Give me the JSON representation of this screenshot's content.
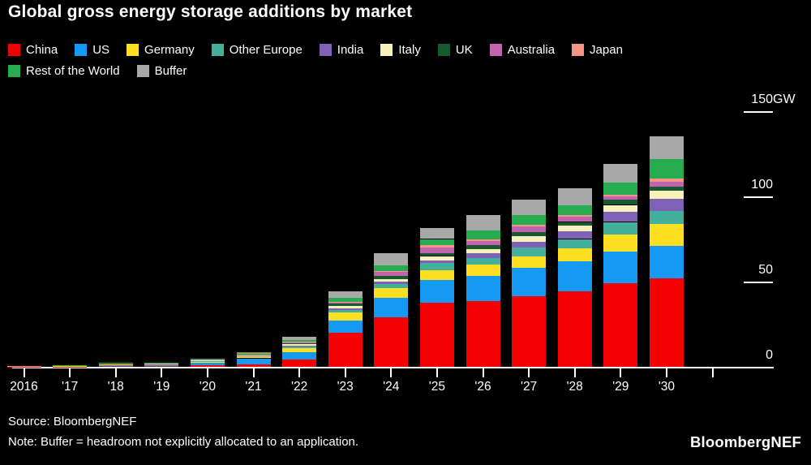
{
  "title": "Global gross energy storage additions by market",
  "legend": [
    {
      "label": "China",
      "color": "#f40000"
    },
    {
      "label": "US",
      "color": "#149af2"
    },
    {
      "label": "Germany",
      "color": "#ffdf22"
    },
    {
      "label": "Other Europe",
      "color": "#43b09c"
    },
    {
      "label": "India",
      "color": "#7d62b8"
    },
    {
      "label": "Italy",
      "color": "#f7f2ba"
    },
    {
      "label": "UK",
      "color": "#19592f"
    },
    {
      "label": "Australia",
      "color": "#c263af"
    },
    {
      "label": "Japan",
      "color": "#f79488"
    },
    {
      "label": "Rest of the World",
      "color": "#27ad4f"
    },
    {
      "label": "Buffer",
      "color": "#a8a8a8"
    }
  ],
  "y_axis": {
    "unit": "GW",
    "ticks": [
      {
        "value": 150,
        "label": "150",
        "suffix": "GW",
        "dash": true
      },
      {
        "value": 100,
        "label": "100",
        "suffix": "",
        "dash": true
      },
      {
        "value": 50,
        "label": "50",
        "suffix": "",
        "dash": true
      },
      {
        "value": 0,
        "label": "0",
        "suffix": "",
        "dash": false
      }
    ]
  },
  "x_axis": {
    "labels": [
      "2016",
      "'17",
      "'18",
      "'19",
      "'20",
      "'21",
      "'22",
      "'23",
      "'24",
      "'25",
      "'26",
      "'27",
      "'28",
      "'29",
      "'30"
    ],
    "extra_unlabeled_tick": true
  },
  "chart_data": {
    "type": "bar",
    "stacked": true,
    "title": "Global gross energy storage additions by market",
    "unit": "GW",
    "ylim": [
      0,
      150
    ],
    "grid": false,
    "legend_position": "top",
    "categories": [
      "2016",
      "2017",
      "2018",
      "2019",
      "2020",
      "2021",
      "2022",
      "2023",
      "2024",
      "2025",
      "2026",
      "2027",
      "2028",
      "2029",
      "2030"
    ],
    "series": [
      {
        "name": "China",
        "color": "#f40000",
        "values": [
          0.1,
          0.2,
          0.5,
          0.4,
          1.0,
          1.5,
          4.5,
          20.0,
          29.0,
          37.5,
          38.5,
          41.5,
          44.5,
          49.0,
          52.0
        ]
      },
      {
        "name": "US",
        "color": "#149af2",
        "values": [
          0.2,
          0.3,
          0.6,
          0.5,
          1.2,
          3.5,
          4.0,
          7.0,
          11.5,
          13.5,
          15.0,
          16.5,
          17.5,
          18.5,
          19.0
        ]
      },
      {
        "name": "Germany",
        "color": "#ffdf22",
        "values": [
          0.1,
          0.2,
          0.4,
          0.4,
          0.7,
          1.0,
          2.4,
          5.0,
          5.5,
          5.5,
          6.5,
          7.0,
          7.5,
          10.0,
          13.0
        ]
      },
      {
        "name": "Other Europe",
        "color": "#43b09c",
        "values": [
          0.05,
          0.1,
          0.2,
          0.2,
          0.5,
          0.5,
          1.2,
          1.5,
          2.5,
          4.5,
          4.0,
          5.0,
          5.5,
          7.5,
          7.5
        ]
      },
      {
        "name": "India",
        "color": "#7d62b8",
        "values": [
          0,
          0,
          0,
          0,
          0.2,
          0.2,
          0.3,
          0.8,
          1.5,
          1.5,
          2.5,
          3.5,
          4.5,
          6.0,
          7.0
        ]
      },
      {
        "name": "Italy",
        "color": "#f7f2ba",
        "values": [
          0,
          0,
          0,
          0,
          0.1,
          0.5,
          0.8,
          1.5,
          1.5,
          2.5,
          2.5,
          3.0,
          3.5,
          4.0,
          4.8
        ]
      },
      {
        "name": "UK",
        "color": "#19592f",
        "values": [
          0.05,
          0.1,
          0.3,
          0.3,
          0.4,
          0.4,
          0.6,
          1.2,
          2.0,
          1.5,
          2.5,
          2.5,
          2.0,
          3.0,
          2.4
        ]
      },
      {
        "name": "Australia",
        "color": "#c263af",
        "values": [
          0,
          0,
          0.2,
          0.2,
          0.3,
          0.3,
          0.5,
          0.8,
          2.0,
          3.5,
          2.5,
          3.5,
          3.0,
          2.0,
          3.0
        ]
      },
      {
        "name": "Japan",
        "color": "#f79488",
        "values": [
          0.05,
          0.05,
          0.1,
          0.1,
          0.2,
          0.2,
          0.3,
          0.5,
          0.5,
          1.5,
          1.0,
          1.0,
          1.0,
          1.0,
          2.0
        ]
      },
      {
        "name": "Rest of the World",
        "color": "#27ad4f",
        "values": [
          0,
          0.05,
          0.1,
          0.2,
          0.3,
          0.4,
          1.0,
          2.4,
          3.5,
          3.5,
          5.0,
          5.5,
          6.0,
          7.0,
          11.0
        ]
      },
      {
        "name": "Buffer",
        "color": "#a8a8a8",
        "values": [
          0,
          0,
          0,
          0,
          0,
          0,
          2.0,
          3.5,
          7.0,
          6.5,
          9.0,
          9.0,
          10.0,
          11.0,
          13.5
        ]
      }
    ]
  },
  "footer": {
    "source": "Source: BloombergNEF",
    "note": "Note: Buffer = headroom not explicitly allocated to an application.",
    "logo": "BloombergNEF"
  }
}
